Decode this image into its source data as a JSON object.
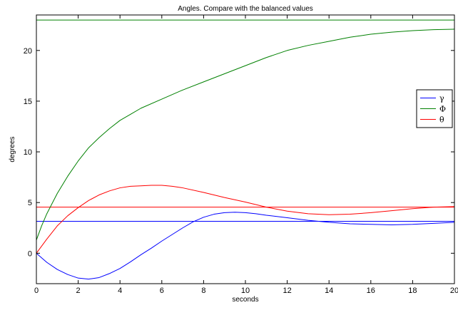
{
  "chart_data": {
    "type": "line",
    "title": "Angles. Compare with the balanced values",
    "xlabel": "seconds",
    "ylabel": "degrees",
    "xlim": [
      0,
      20
    ],
    "ylim": [
      -3,
      23.5
    ],
    "xticks": [
      0,
      2,
      4,
      6,
      8,
      10,
      12,
      14,
      16,
      18,
      20
    ],
    "yticks": [
      0,
      5,
      10,
      15,
      20
    ],
    "grid": false,
    "legend_position": "right",
    "colors": {
      "gamma": "#0000ff",
      "phi": "#008000",
      "theta": "#ff0000"
    },
    "series": [
      {
        "name": "γ",
        "color": "#0000ff",
        "x": [
          0,
          0.5,
          1,
          1.5,
          2,
          2.5,
          3,
          3.5,
          4,
          4.5,
          5,
          5.5,
          6,
          6.5,
          7,
          7.5,
          8,
          8.5,
          9,
          9.5,
          10,
          10.5,
          11,
          12,
          13,
          14,
          15,
          16,
          17,
          18,
          19,
          20
        ],
        "y": [
          0,
          -0.9,
          -1.6,
          -2.1,
          -2.45,
          -2.55,
          -2.4,
          -2.0,
          -1.5,
          -0.85,
          -0.15,
          0.5,
          1.2,
          1.85,
          2.5,
          3.1,
          3.55,
          3.85,
          4.0,
          4.05,
          4.0,
          3.9,
          3.75,
          3.5,
          3.25,
          3.05,
          2.9,
          2.85,
          2.8,
          2.85,
          2.95,
          3.05
        ]
      },
      {
        "name": "Φ",
        "color": "#008000",
        "x": [
          0,
          0.25,
          0.5,
          1,
          1.5,
          2,
          2.5,
          3,
          3.5,
          4,
          4.5,
          5,
          6,
          7,
          8,
          9,
          10,
          11,
          12,
          13,
          14,
          15,
          16,
          17,
          18,
          19,
          20
        ],
        "y": [
          1.3,
          2.7,
          3.9,
          5.9,
          7.6,
          9.1,
          10.4,
          11.4,
          12.3,
          13.1,
          13.7,
          14.3,
          15.2,
          16.1,
          16.9,
          17.7,
          18.5,
          19.3,
          20.0,
          20.5,
          20.9,
          21.3,
          21.6,
          21.8,
          21.95,
          22.05,
          22.1
        ]
      },
      {
        "name": "θ",
        "color": "#ff0000",
        "x": [
          0,
          0.5,
          1,
          1.5,
          2,
          2.5,
          3,
          3.5,
          4,
          4.5,
          5,
          5.5,
          6,
          6.5,
          7,
          8,
          9,
          10,
          11,
          12,
          13,
          14,
          15,
          16,
          17,
          18,
          19,
          20
        ],
        "y": [
          0,
          1.4,
          2.7,
          3.7,
          4.5,
          5.2,
          5.75,
          6.15,
          6.45,
          6.6,
          6.65,
          6.7,
          6.7,
          6.6,
          6.45,
          6.0,
          5.5,
          5.05,
          4.55,
          4.15,
          3.9,
          3.8,
          3.85,
          4.0,
          4.2,
          4.4,
          4.55,
          4.6
        ]
      }
    ],
    "reference_lines": [
      {
        "series": "Φ",
        "y": 23.0,
        "color": "#008000"
      },
      {
        "series": "θ",
        "y": 4.55,
        "color": "#ff0000"
      },
      {
        "series": "γ",
        "y": 3.15,
        "color": "#0000ff"
      }
    ]
  }
}
